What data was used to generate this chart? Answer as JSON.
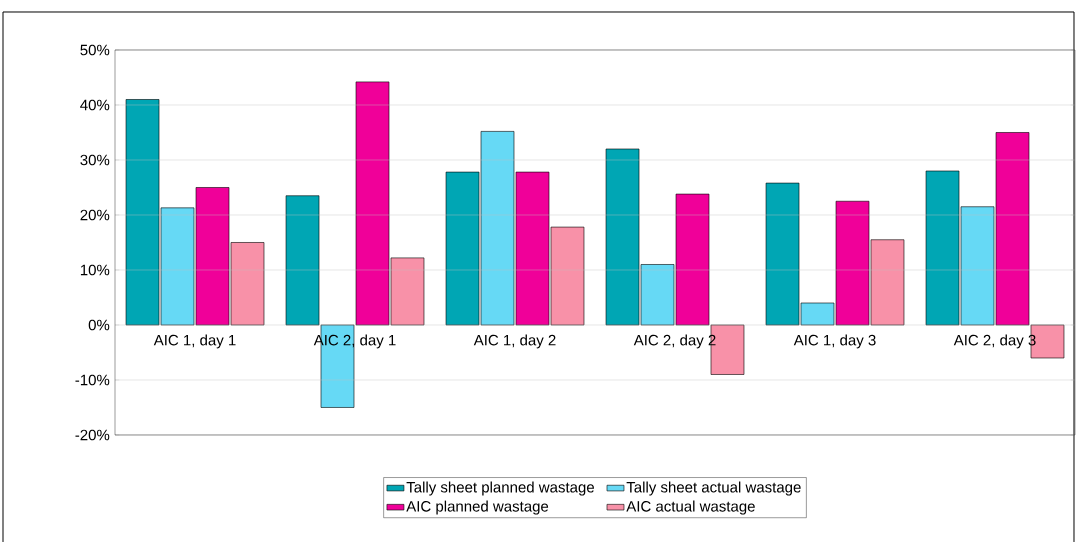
{
  "chart_data": {
    "type": "bar",
    "categories": [
      "AIC 1, day 1",
      "AIC 2, day 1",
      "AIC 1, day 2",
      "AIC 2, day 2",
      "AIC 1, day 3",
      "AIC 2, day 3"
    ],
    "series": [
      {
        "name": "Tally sheet planned wastage",
        "color": "#00a6b4",
        "values": [
          41,
          23.5,
          27.8,
          32,
          25.8,
          28
        ]
      },
      {
        "name": "Tally sheet actual wastage",
        "color": "#66d9f5",
        "values": [
          21.3,
          -15,
          35.2,
          11,
          4,
          21.5
        ]
      },
      {
        "name": "AIC planned wastage",
        "color": "#f00099",
        "values": [
          25,
          44.2,
          27.8,
          23.8,
          22.5,
          35
        ]
      },
      {
        "name": "AIC actual wastage",
        "color": "#f891a8",
        "values": [
          15,
          12.2,
          17.8,
          -9,
          15.5,
          -6
        ]
      }
    ],
    "ylim": [
      -20,
      50
    ],
    "yticks": [
      {
        "value": -20,
        "label": "-20%"
      },
      {
        "value": -10,
        "label": "-10%"
      },
      {
        "value": 0,
        "label": "0%"
      },
      {
        "value": 10,
        "label": "10%"
      },
      {
        "value": 20,
        "label": "20%"
      },
      {
        "value": 30,
        "label": "30%"
      },
      {
        "value": 40,
        "label": "40%"
      },
      {
        "value": 50,
        "label": "50%"
      }
    ],
    "grid": "y",
    "legend": "bottom"
  }
}
